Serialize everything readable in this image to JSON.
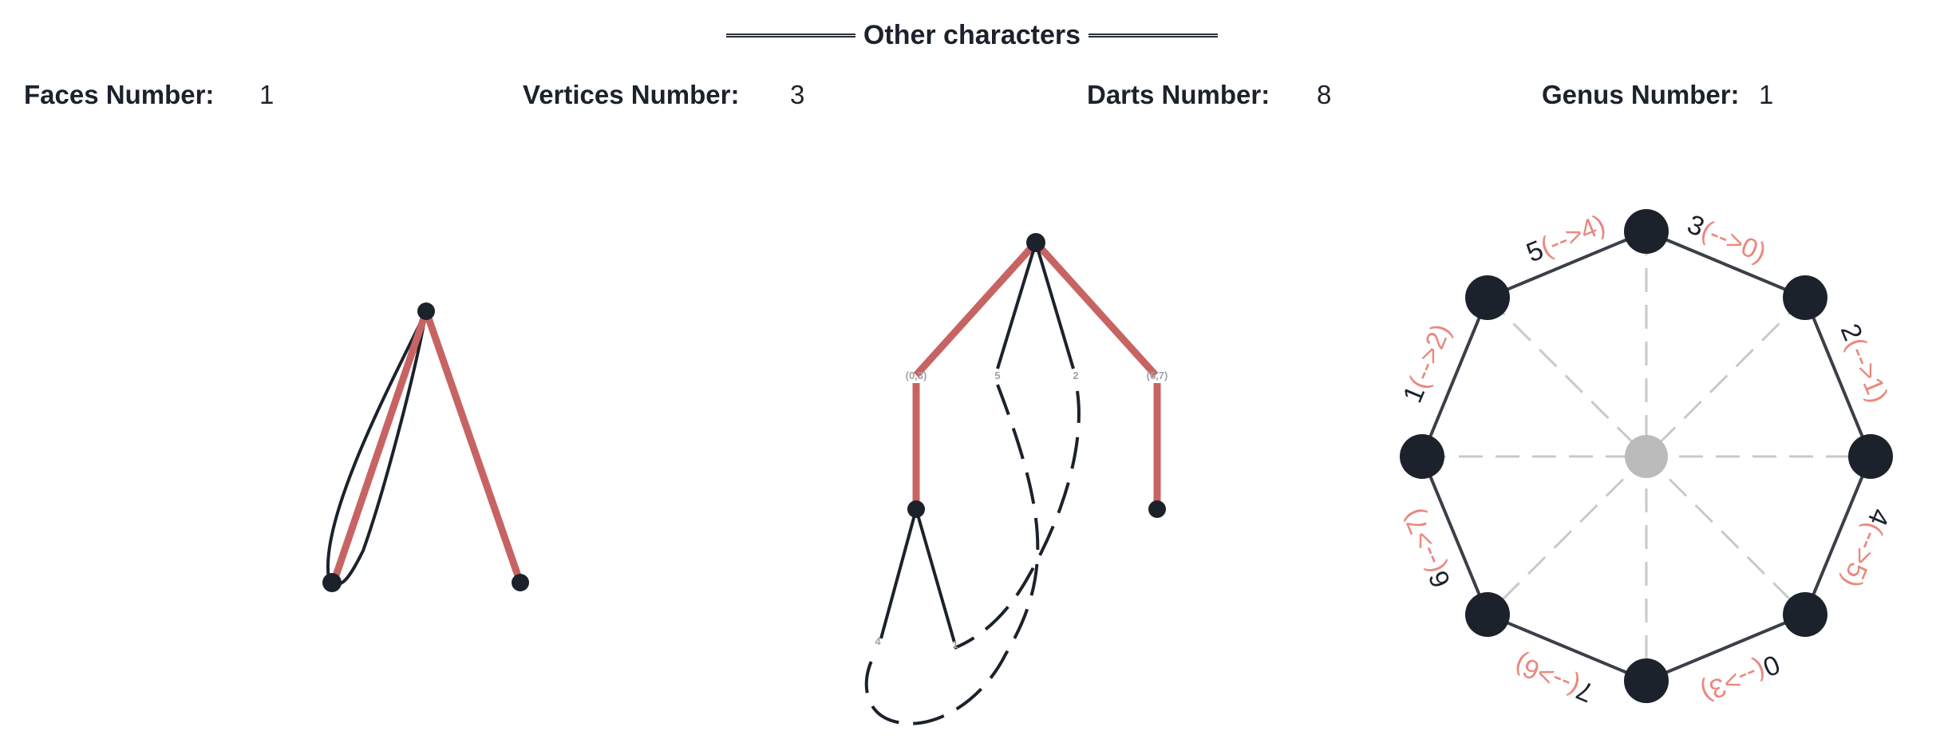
{
  "header": {
    "title": "Other characters"
  },
  "stats": [
    {
      "label": "Faces Number:",
      "value": "1"
    },
    {
      "label": "Vertices Number:",
      "value": "3"
    },
    {
      "label": "Darts Number:",
      "value": "8"
    },
    {
      "label": "Genus Number:",
      "value": "1"
    }
  ],
  "colors": {
    "ink": "#1c222c",
    "tree": "#c76463",
    "label": "#e9897f",
    "guide": "#c9c9c9",
    "center": "#bbbbbb"
  },
  "tree_labels": {
    "left": "(0,3)",
    "mid_left": "5",
    "mid_right": "2",
    "right": "(6,7)",
    "low_left": "4",
    "low_right": "1"
  },
  "polygon": {
    "sides": [
      {
        "dart": "3",
        "pair": "(-->0)"
      },
      {
        "dart": "2",
        "pair": "(-->1)"
      },
      {
        "dart": "4",
        "pair": "(-->5)"
      },
      {
        "dart": "0",
        "pair": "(-->3)"
      },
      {
        "dart": "7",
        "pair": "(-->6)"
      },
      {
        "dart": "6",
        "pair": "(-->7)"
      },
      {
        "dart": "1",
        "pair": "(-->2)"
      },
      {
        "dart": "5",
        "pair": "(-->4)"
      }
    ]
  }
}
